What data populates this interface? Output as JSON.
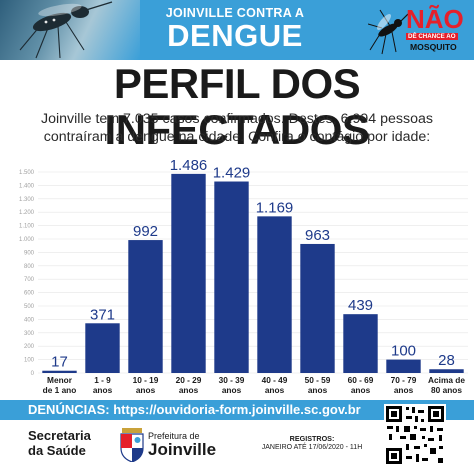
{
  "banner": {
    "campaign_line1": "JOINVILLE CONTRA A",
    "campaign_line2": "DENGUE",
    "logo_nao": "NÃO",
    "logo_tagline": "DÊ CHANCE AO",
    "logo_mosquito": "MOSQUITO"
  },
  "headline": {
    "title": "PERFIL DOS INFECTADOS",
    "subtitle": "Joinville tem 7.035 casos confirmados. Destes, 6.994 pessoas contraíram a dengue na cidade. Confira o contágio por idade:"
  },
  "chart_data": {
    "type": "bar",
    "categories": [
      "Menor de 1 ano",
      "1 - 9 anos",
      "10 - 19 anos",
      "20 - 29 anos",
      "30 - 39 anos",
      "40 - 49 anos",
      "50 - 59 anos",
      "60 - 69 anos",
      "70 - 79 anos",
      "Acima de 80 anos"
    ],
    "category_lines": [
      [
        "Menor",
        "de 1 ano"
      ],
      [
        "1 - 9",
        "anos"
      ],
      [
        "10 - 19",
        "anos"
      ],
      [
        "20 - 29",
        "anos"
      ],
      [
        "30 - 39",
        "anos"
      ],
      [
        "40 - 49",
        "anos"
      ],
      [
        "50 - 59",
        "anos"
      ],
      [
        "60 - 69",
        "anos"
      ],
      [
        "70 - 79",
        "anos"
      ],
      [
        "Acima de",
        "80 anos"
      ]
    ],
    "values": [
      17,
      371,
      992,
      1486,
      1429,
      1169,
      963,
      439,
      100,
      28
    ],
    "value_labels": [
      "17",
      "371",
      "992",
      "1.486",
      "1.429",
      "1.169",
      "963",
      "439",
      "100",
      "28"
    ],
    "ylim": [
      0,
      1500
    ],
    "y_ticks": [
      0,
      100,
      200,
      300,
      400,
      500,
      600,
      700,
      800,
      900,
      1000,
      1100,
      1200,
      1300,
      1400,
      1500
    ],
    "y_tick_labels": [
      "0",
      "100",
      "200",
      "300",
      "400",
      "500",
      "600",
      "700",
      "800",
      "900",
      "1.000",
      "1.100",
      "1.200",
      "1.300",
      "1.400",
      "1.500"
    ],
    "grid": true,
    "bar_color": "#1e3a8a",
    "label_color": "#1e3a8a",
    "title": "",
    "xlabel": "",
    "ylabel": ""
  },
  "footer": {
    "denuncias": "DENÚNCIAS: https://ouvidoria-form.joinville.sc.gov.br",
    "secretaria_line1": "Secretaria",
    "secretaria_line2": "da Saúde",
    "prefeitura_line1": "Prefeitura de",
    "prefeitura_line2": "Joinville",
    "registros_title": "REGISTROS:",
    "registros_period": "JANEIRO ATÉ 17/06/2020 - 11H"
  },
  "colors": {
    "banner_blue": "#3a9fd8",
    "bar_navy": "#1e3a8a",
    "logo_red": "#e5202b"
  }
}
